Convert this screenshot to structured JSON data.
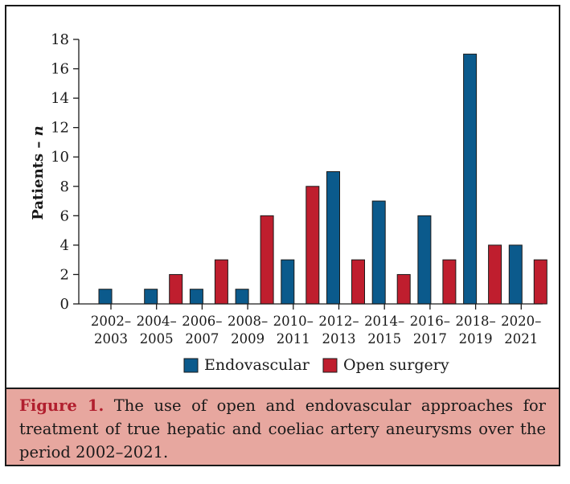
{
  "chart_data": {
    "type": "bar",
    "ylabel_main": "Patients – ",
    "ylabel_italic": "n",
    "ylim": [
      0,
      18
    ],
    "yticks": [
      0,
      2,
      4,
      6,
      8,
      10,
      12,
      14,
      16,
      18
    ],
    "categories": [
      {
        "line1": "2002–",
        "line2": "2003"
      },
      {
        "line1": "2004–",
        "line2": "2005"
      },
      {
        "line1": "2006–",
        "line2": "2007"
      },
      {
        "line1": "2008–",
        "line2": "2009"
      },
      {
        "line1": "2010–",
        "line2": "2011"
      },
      {
        "line1": "2012–",
        "line2": "2013"
      },
      {
        "line1": "2014–",
        "line2": "2015"
      },
      {
        "line1": "2016–",
        "line2": "2017"
      },
      {
        "line1": "2018–",
        "line2": "2019"
      },
      {
        "line1": "2020–",
        "line2": "2021"
      }
    ],
    "series": [
      {
        "name": "Endovascular",
        "color": "#0b5a8c",
        "values": [
          1,
          1,
          1,
          1,
          3,
          9,
          7,
          6,
          17,
          4
        ]
      },
      {
        "name": "Open surgery",
        "color": "#bf1e2e",
        "values": [
          0,
          2,
          3,
          6,
          8,
          3,
          2,
          3,
          4,
          3
        ]
      }
    ],
    "legend_position": "bottom"
  },
  "caption": {
    "label": "Figure 1.",
    "text": " The use of open and endovascular approaches for treatment of true hepatic and coeliac artery aneurysms over the period 2002–2021."
  }
}
